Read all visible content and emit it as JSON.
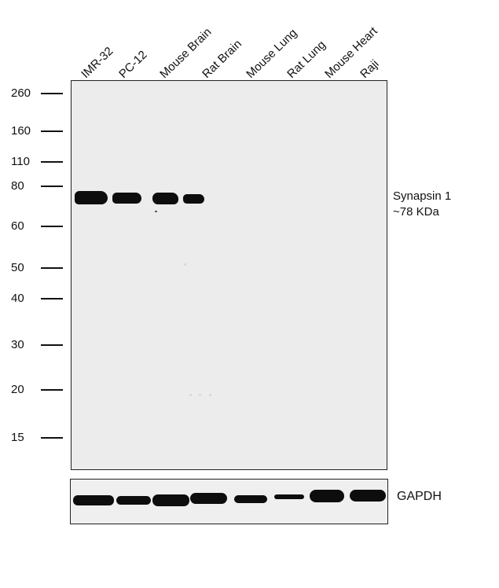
{
  "lanes": [
    "IMR-32",
    "PC-12",
    "Mouse Brain",
    "Rat Brain",
    "Mouse Lung",
    "Rat Lung",
    "Mouse Heart",
    "Raji"
  ],
  "markers": [
    "260",
    "160",
    "110",
    "80",
    "60",
    "50",
    "40",
    "30",
    "20",
    "15"
  ],
  "target": {
    "name": "Synapsin 1",
    "size": "~78 KDa"
  },
  "loading_control": "GAPDH",
  "band_color": "#0d0d0d",
  "blot_background": "#ececec"
}
